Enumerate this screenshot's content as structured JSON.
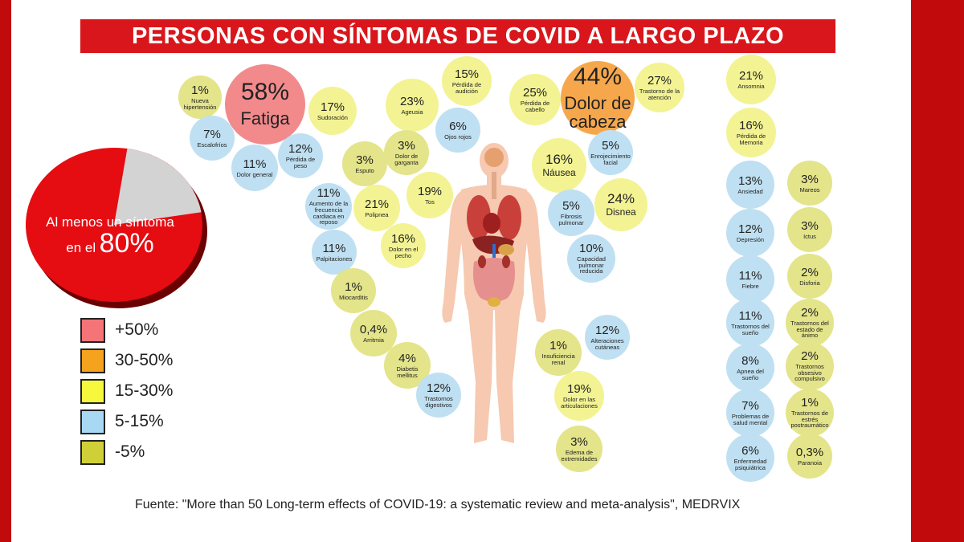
{
  "title": "PERSONAS CON SÍNTOMAS DE COVID A LARGO PLAZO",
  "colors": {
    "red": "#f28a8c",
    "orange": "#f6a74c",
    "yellow": "#f3f393",
    "blue": "#bfe0f2",
    "olive": "#e4e48a",
    "title_bg": "#d9161b",
    "frame": "#c00a0c"
  },
  "summary": {
    "line1": "Al menos un síntoma",
    "line2": "en el",
    "value": "80%",
    "fraction": 0.8
  },
  "legend": [
    {
      "label": "+50%",
      "color": "#f57478"
    },
    {
      "label": "30-50%",
      "color": "#f5a21e"
    },
    {
      "label": "15-30%",
      "color": "#f7f73b"
    },
    {
      "label": "5-15%",
      "color": "#a9d9f2"
    },
    {
      "label": "-5%",
      "color": "#cfcf38"
    }
  ],
  "symptoms": [
    {
      "id": "nueva-hipertension",
      "pct": "1%",
      "label": "Nueva hipertensión",
      "cat": "olive"
    },
    {
      "id": "fatiga",
      "pct": "58%",
      "label": "Fatiga",
      "cat": "red"
    },
    {
      "id": "sudoracion",
      "pct": "17%",
      "label": "Sudoración",
      "cat": "yellow"
    },
    {
      "id": "escalofrios",
      "pct": "7%",
      "label": "Escalofríos",
      "cat": "blue"
    },
    {
      "id": "dolor-general",
      "pct": "11%",
      "label": "Dolor general",
      "cat": "blue"
    },
    {
      "id": "perdida-de-peso",
      "pct": "12%",
      "label": "Pérdida de peso",
      "cat": "blue"
    },
    {
      "id": "ageusia",
      "pct": "23%",
      "label": "Ageusia",
      "cat": "yellow"
    },
    {
      "id": "perdida-de-audicion",
      "pct": "15%",
      "label": "Pérdida de audición",
      "cat": "yellow"
    },
    {
      "id": "ojos-rojos",
      "pct": "6%",
      "label": "Ojos rojos",
      "cat": "blue"
    },
    {
      "id": "perdida-de-cabello",
      "pct": "25%",
      "label": "Pérdida de cabello",
      "cat": "yellow"
    },
    {
      "id": "dolor-de-cabeza",
      "pct": "44%",
      "label": "Dolor de cabeza",
      "cat": "orange"
    },
    {
      "id": "trastorno-atencion",
      "pct": "27%",
      "label": "Trastorno de la atención",
      "cat": "yellow"
    },
    {
      "id": "esputo",
      "pct": "3%",
      "label": "Esputo",
      "cat": "olive"
    },
    {
      "id": "dolor-de-garganta",
      "pct": "3%",
      "label": "Dolor de garganta",
      "cat": "olive"
    },
    {
      "id": "tos",
      "pct": "19%",
      "label": "Tos",
      "cat": "yellow"
    },
    {
      "id": "frecuencia-cardiaca",
      "pct": "11%",
      "label": "Aumento de la frecuencia cardiaca en reposo",
      "cat": "blue"
    },
    {
      "id": "polipnea",
      "pct": "21%",
      "label": "Polipnea",
      "cat": "yellow"
    },
    {
      "id": "palpitaciones",
      "pct": "11%",
      "label": "Palpitaciones",
      "cat": "blue"
    },
    {
      "id": "dolor-en-el-pecho",
      "pct": "16%",
      "label": "Dolor en el pecho",
      "cat": "yellow"
    },
    {
      "id": "miocarditis",
      "pct": "1%",
      "label": "Miocarditis",
      "cat": "olive"
    },
    {
      "id": "arritmia",
      "pct": "0,4%",
      "label": "Arritmia",
      "cat": "olive"
    },
    {
      "id": "diabetis-mellitus",
      "pct": "4%",
      "label": "Diabetis mellitus",
      "cat": "olive"
    },
    {
      "id": "trastornos-digestivos",
      "pct": "12%",
      "label": "Trastornos digestivos",
      "cat": "blue"
    },
    {
      "id": "nausea",
      "pct": "16%",
      "label": "Náusea",
      "cat": "yellow"
    },
    {
      "id": "enrojecimiento-facial",
      "pct": "5%",
      "label": "Enrojecimiento facial",
      "cat": "blue"
    },
    {
      "id": "disnea",
      "pct": "24%",
      "label": "Disnea",
      "cat": "yellow"
    },
    {
      "id": "fibrosis-pulmonar",
      "pct": "5%",
      "label": "Fibrosis pulmonar",
      "cat": "blue"
    },
    {
      "id": "capacidad-pulmonar",
      "pct": "10%",
      "label": "Capacidad pulmonar reducida",
      "cat": "blue"
    },
    {
      "id": "alteraciones-cutaneas",
      "pct": "12%",
      "label": "Alteraciones cutáneas",
      "cat": "blue"
    },
    {
      "id": "insuficiencia-renal",
      "pct": "1%",
      "label": "Insuficiencia renal",
      "cat": "olive"
    },
    {
      "id": "dolor-articulaciones",
      "pct": "19%",
      "label": "Dolor en las articulaciones",
      "cat": "yellow"
    },
    {
      "id": "edema-extremidades",
      "pct": "3%",
      "label": "Edema de extremidades",
      "cat": "olive"
    },
    {
      "id": "ansomnia",
      "pct": "21%",
      "label": "Ansomnia",
      "cat": "yellow"
    },
    {
      "id": "perdida-de-memoria",
      "pct": "16%",
      "label": "Pérdida de Memoria",
      "cat": "yellow"
    },
    {
      "id": "ansiedad",
      "pct": "13%",
      "label": "Ansiedad",
      "cat": "blue"
    },
    {
      "id": "mareos",
      "pct": "3%",
      "label": "Mareos",
      "cat": "olive"
    },
    {
      "id": "depresion",
      "pct": "12%",
      "label": "Depresión",
      "cat": "blue"
    },
    {
      "id": "ictus",
      "pct": "3%",
      "label": "Ictus",
      "cat": "olive"
    },
    {
      "id": "fiebre",
      "pct": "11%",
      "label": "Fiebre",
      "cat": "blue"
    },
    {
      "id": "disforia",
      "pct": "2%",
      "label": "Disforia",
      "cat": "olive"
    },
    {
      "id": "trastornos-sueno",
      "pct": "11%",
      "label": "Trastornos del sueño",
      "cat": "blue"
    },
    {
      "id": "trastornos-animo",
      "pct": "2%",
      "label": "Trastornos del estado de ánimo",
      "cat": "olive"
    },
    {
      "id": "apnea-sueno",
      "pct": "8%",
      "label": "Apnea del sueño",
      "cat": "blue"
    },
    {
      "id": "obsesivo-compulsivo",
      "pct": "2%",
      "label": "Trastornos obsesivo compulsivo",
      "cat": "olive"
    },
    {
      "id": "salud-mental",
      "pct": "7%",
      "label": "Problemas de salud mental",
      "cat": "blue"
    },
    {
      "id": "estres-postraumatico",
      "pct": "1%",
      "label": "Trastornos de estrés postraumático",
      "cat": "olive"
    },
    {
      "id": "enfermedad-psiquiatrica",
      "pct": "6%",
      "label": "Enfermedad psiquiátrica",
      "cat": "blue"
    },
    {
      "id": "paranoia",
      "pct": "0,3%",
      "label": "Paranoia",
      "cat": "olive"
    }
  ],
  "source": "Fuente: \"More than 50 Long-term effects of COVID-19: a systematic review and meta-analysis\", MEDRVIX"
}
